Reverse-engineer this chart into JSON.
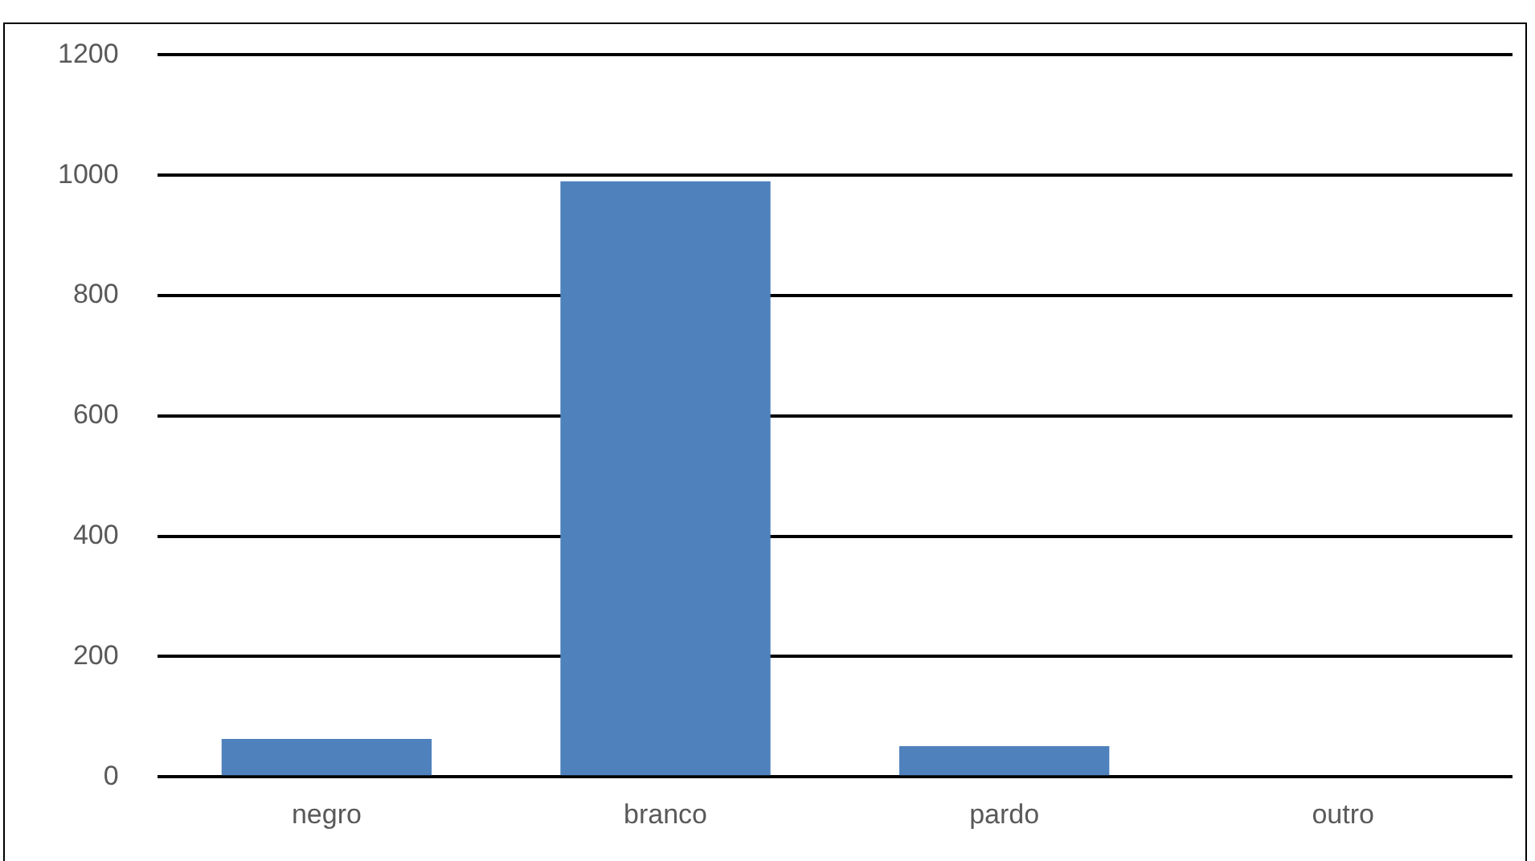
{
  "chart_data": {
    "type": "bar",
    "categories": [
      "negro",
      "branco",
      "pardo",
      "outro"
    ],
    "series": [
      {
        "color": "#4f81bd",
        "values": [
          63,
          990,
          51,
          0
        ]
      }
    ],
    "ylim": [
      0,
      1200
    ],
    "yticks": [
      0,
      200,
      400,
      600,
      800,
      1000,
      1200
    ],
    "grid": "y",
    "legend": false
  }
}
